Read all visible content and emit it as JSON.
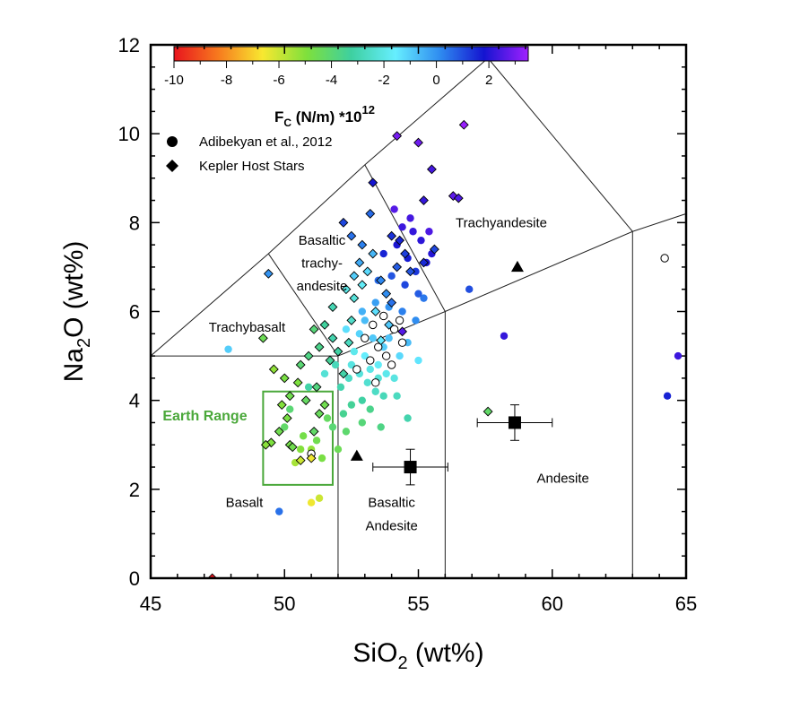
{
  "chart_data": {
    "type": "scatter",
    "xlabel_main": "SiO",
    "xlabel_sub": "2",
    "xlabel_tail": " (wt%)",
    "ylabel_main": "Na",
    "ylabel_sub": "2",
    "ylabel_tail": "O (wt%)",
    "xlim": [
      45,
      65
    ],
    "ylim": [
      0,
      12
    ],
    "xticks": [
      45,
      50,
      55,
      60,
      65
    ],
    "yticks": [
      0,
      2,
      4,
      6,
      8,
      10,
      12
    ],
    "colorbar": {
      "title_main": "F",
      "title_sub": "C",
      "title_tail": " (N/m) *10",
      "title_sup": "12",
      "range": [
        -10,
        3.5
      ],
      "ticks": [
        -10,
        -8,
        -6,
        -4,
        -2,
        0,
        2
      ],
      "tick_labels": [
        "-10",
        "-8",
        "-6",
        "-4",
        "-2",
        "0",
        "2"
      ],
      "colors": [
        "#e8141e",
        "#f77a1e",
        "#f8e830",
        "#7ee03c",
        "#3ed0a0",
        "#66eeff",
        "#2f8cf0",
        "#1414d0",
        "#a020ff"
      ]
    },
    "legend": [
      {
        "marker": "circle",
        "label": "Adibekyan et al., 2012"
      },
      {
        "marker": "diamond",
        "label": "Kepler Host Stars"
      }
    ],
    "region_labels": [
      {
        "text": "Trachyandesite",
        "x": 58.1,
        "y": 7.9
      },
      {
        "text": "Basaltic",
        "x": 51.4,
        "y": 7.5
      },
      {
        "text": "trachy-",
        "x": 51.4,
        "y": 6.99
      },
      {
        "text": "andesite",
        "x": 51.4,
        "y": 6.47
      },
      {
        "text": "Trachybasalt",
        "x": 48.6,
        "y": 5.55
      },
      {
        "text": "Basalt",
        "x": 48.5,
        "y": 1.6
      },
      {
        "text": "Basaltic",
        "x": 54.0,
        "y": 1.6
      },
      {
        "text": "Andesite",
        "x": 54.0,
        "y": 1.08
      },
      {
        "text": "Andesite",
        "x": 60.4,
        "y": 2.15
      }
    ],
    "tas_boundaries": [
      [
        [
          45,
          5
        ],
        [
          52,
          5
        ],
        [
          52,
          0
        ]
      ],
      [
        [
          52,
          5
        ],
        [
          56,
          6
        ],
        [
          56,
          0
        ]
      ],
      [
        [
          56,
          6
        ],
        [
          63,
          7.8
        ],
        [
          63,
          0
        ]
      ],
      [
        [
          63,
          7.8
        ],
        [
          65,
          8.2
        ]
      ],
      [
        [
          45,
          5
        ],
        [
          49.4,
          7.3
        ],
        [
          53,
          9.3
        ],
        [
          57.6,
          11.7
        ]
      ],
      [
        [
          49.4,
          7.3
        ],
        [
          52,
          5
        ]
      ],
      [
        [
          53,
          9.3
        ],
        [
          56,
          6
        ]
      ],
      [
        [
          57.6,
          11.7
        ],
        [
          63,
          7.8
        ]
      ]
    ],
    "earth_range": {
      "label": "Earth Range",
      "x": [
        49.2,
        51.8
      ],
      "y": [
        2.1,
        4.2
      ],
      "color": "#4aa83a"
    },
    "adibekyan_points": [
      {
        "x": 47.9,
        "y": 5.15,
        "fc": -1.0
      },
      {
        "x": 49.8,
        "y": 1.5,
        "fc": 0.5
      },
      {
        "x": 50.6,
        "y": 2.9,
        "fc": -5.0
      },
      {
        "x": 50.4,
        "y": 2.6,
        "fc": -5.5
      },
      {
        "x": 51.0,
        "y": 2.9,
        "fc": -5.2
      },
      {
        "x": 51.3,
        "y": 1.8,
        "fc": -6.0
      },
      {
        "x": 51.0,
        "y": 1.7,
        "fc": -6.5
      },
      {
        "x": 51.4,
        "y": 2.7,
        "fc": -4.8
      },
      {
        "x": 51.2,
        "y": 3.1,
        "fc": -4.6
      },
      {
        "x": 50.0,
        "y": 3.4,
        "fc": -4.2
      },
      {
        "x": 50.2,
        "y": 3.8,
        "fc": -4.0
      },
      {
        "x": 52.0,
        "y": 2.9,
        "fc": -4.5
      },
      {
        "x": 52.3,
        "y": 3.3,
        "fc": -4.1
      },
      {
        "x": 51.6,
        "y": 3.6,
        "fc": -4.3
      },
      {
        "x": 52.5,
        "y": 3.9,
        "fc": -3.4
      },
      {
        "x": 52.9,
        "y": 4.0,
        "fc": -3.2
      },
      {
        "x": 53.2,
        "y": 3.8,
        "fc": -3.6
      },
      {
        "x": 54.6,
        "y": 3.6,
        "fc": -3.0
      },
      {
        "x": 52.1,
        "y": 4.3,
        "fc": -3.0
      },
      {
        "x": 51.9,
        "y": 4.8,
        "fc": -2.8
      },
      {
        "x": 52.4,
        "y": 4.5,
        "fc": -2.6
      },
      {
        "x": 52.8,
        "y": 4.6,
        "fc": -2.2
      },
      {
        "x": 53.1,
        "y": 4.4,
        "fc": -2.4
      },
      {
        "x": 53.4,
        "y": 4.2,
        "fc": -2.6
      },
      {
        "x": 53.7,
        "y": 4.1,
        "fc": -2.8
      },
      {
        "x": 52.6,
        "y": 5.1,
        "fc": -1.9
      },
      {
        "x": 53.0,
        "y": 5.0,
        "fc": -1.6
      },
      {
        "x": 53.5,
        "y": 4.8,
        "fc": -1.7
      },
      {
        "x": 53.8,
        "y": 4.6,
        "fc": -1.9
      },
      {
        "x": 54.1,
        "y": 4.5,
        "fc": -2.1
      },
      {
        "x": 52.3,
        "y": 5.6,
        "fc": -1.3
      },
      {
        "x": 52.8,
        "y": 5.5,
        "fc": -1.1
      },
      {
        "x": 53.3,
        "y": 5.4,
        "fc": -0.9
      },
      {
        "x": 53.7,
        "y": 5.2,
        "fc": -1.0
      },
      {
        "x": 54.3,
        "y": 5.0,
        "fc": -1.2
      },
      {
        "x": 54.6,
        "y": 5.3,
        "fc": -0.7
      },
      {
        "x": 52.9,
        "y": 6.0,
        "fc": -0.5
      },
      {
        "x": 53.4,
        "y": 6.2,
        "fc": -0.2
      },
      {
        "x": 53.9,
        "y": 6.1,
        "fc": 0.0
      },
      {
        "x": 54.4,
        "y": 6.0,
        "fc": 0.3
      },
      {
        "x": 54.9,
        "y": 5.8,
        "fc": 0.1
      },
      {
        "x": 53.5,
        "y": 6.7,
        "fc": 0.6
      },
      {
        "x": 54.0,
        "y": 6.8,
        "fc": 0.9
      },
      {
        "x": 54.5,
        "y": 6.6,
        "fc": 1.1
      },
      {
        "x": 54.9,
        "y": 6.9,
        "fc": 1.3
      },
      {
        "x": 53.7,
        "y": 7.3,
        "fc": 1.6
      },
      {
        "x": 54.2,
        "y": 7.5,
        "fc": 1.9
      },
      {
        "x": 54.6,
        "y": 7.2,
        "fc": 1.7
      },
      {
        "x": 55.1,
        "y": 7.6,
        "fc": 2.1
      },
      {
        "x": 55.3,
        "y": 7.1,
        "fc": 1.9
      },
      {
        "x": 54.4,
        "y": 7.9,
        "fc": 2.3
      },
      {
        "x": 54.7,
        "y": 8.1,
        "fc": 2.4
      },
      {
        "x": 55.5,
        "y": 7.3,
        "fc": 2.0
      },
      {
        "x": 56.9,
        "y": 6.5,
        "fc": 1.0
      },
      {
        "x": 58.2,
        "y": 5.45,
        "fc": 2.2
      },
      {
        "x": 64.3,
        "y": 4.1,
        "fc": 1.6
      },
      {
        "x": 64.7,
        "y": 5.0,
        "fc": 2.3
      },
      {
        "x": 51.5,
        "y": 4.6,
        "fc": -2.3
      },
      {
        "x": 50.9,
        "y": 4.3,
        "fc": -3.1
      },
      {
        "x": 52.9,
        "y": 3.5,
        "fc": -3.9
      },
      {
        "x": 53.6,
        "y": 3.4,
        "fc": -3.7
      },
      {
        "x": 54.2,
        "y": 4.1,
        "fc": -2.7
      },
      {
        "x": 55.0,
        "y": 4.9,
        "fc": -1.4
      },
      {
        "x": 55.2,
        "y": 6.3,
        "fc": 0.4
      },
      {
        "x": 52.5,
        "y": 4.8,
        "fc": -2.1
      },
      {
        "x": 53.2,
        "y": 4.7,
        "fc": -2.0
      },
      {
        "x": 53.9,
        "y": 5.4,
        "fc": -0.8
      },
      {
        "x": 54.8,
        "y": 7.8,
        "fc": 2.2
      },
      {
        "x": 55.4,
        "y": 7.8,
        "fc": 2.5
      },
      {
        "x": 54.1,
        "y": 8.3,
        "fc": 2.6
      },
      {
        "x": 55.0,
        "y": 6.4,
        "fc": 0.8
      },
      {
        "x": 53.0,
        "y": 5.8,
        "fc": -0.7
      },
      {
        "x": 50.7,
        "y": 3.2,
        "fc": -4.7
      },
      {
        "x": 51.8,
        "y": 3.4,
        "fc": -4.0
      },
      {
        "x": 52.2,
        "y": 3.7,
        "fc": -3.5
      },
      {
        "x": 53.5,
        "y": 4.5,
        "fc": -2.3
      }
    ],
    "adibekyan_open": [
      {
        "x": 51.0,
        "y": 2.8
      },
      {
        "x": 53.2,
        "y": 4.9
      },
      {
        "x": 53.5,
        "y": 5.2
      },
      {
        "x": 53.8,
        "y": 5.0
      },
      {
        "x": 54.1,
        "y": 5.6
      },
      {
        "x": 53.0,
        "y": 5.4
      },
      {
        "x": 54.4,
        "y": 5.3
      },
      {
        "x": 53.3,
        "y": 5.7
      },
      {
        "x": 53.7,
        "y": 5.9
      },
      {
        "x": 52.7,
        "y": 4.7
      },
      {
        "x": 54.0,
        "y": 4.8
      },
      {
        "x": 54.3,
        "y": 5.8
      },
      {
        "x": 64.2,
        "y": 7.2
      },
      {
        "x": 53.4,
        "y": 4.4
      }
    ],
    "kepler_points": [
      {
        "x": 47.3,
        "y": 0.0,
        "fc": -10.0
      },
      {
        "x": 49.2,
        "y": 5.4,
        "fc": -4.5
      },
      {
        "x": 49.4,
        "y": 6.85,
        "fc": 0.0
      },
      {
        "x": 50.0,
        "y": 4.5,
        "fc": -4.8
      },
      {
        "x": 49.6,
        "y": 4.7,
        "fc": -5.2
      },
      {
        "x": 50.2,
        "y": 4.1,
        "fc": -4.6
      },
      {
        "x": 50.5,
        "y": 4.4,
        "fc": -4.9
      },
      {
        "x": 49.9,
        "y": 3.9,
        "fc": -5.0
      },
      {
        "x": 50.1,
        "y": 3.6,
        "fc": -4.8
      },
      {
        "x": 49.8,
        "y": 3.3,
        "fc": -4.6
      },
      {
        "x": 49.5,
        "y": 3.05,
        "fc": -4.9
      },
      {
        "x": 49.3,
        "y": 3.0,
        "fc": -5.1
      },
      {
        "x": 50.2,
        "y": 3.0,
        "fc": -4.7
      },
      {
        "x": 50.3,
        "y": 2.95,
        "fc": -4.6
      },
      {
        "x": 50.6,
        "y": 2.65,
        "fc": -6.0
      },
      {
        "x": 51.1,
        "y": 3.3,
        "fc": -4.2
      },
      {
        "x": 51.3,
        "y": 3.7,
        "fc": -4.4
      },
      {
        "x": 51.5,
        "y": 3.9,
        "fc": -4.6
      },
      {
        "x": 50.8,
        "y": 4.0,
        "fc": -4.3
      },
      {
        "x": 51.2,
        "y": 4.3,
        "fc": -3.8
      },
      {
        "x": 50.6,
        "y": 4.8,
        "fc": -4.0
      },
      {
        "x": 50.9,
        "y": 5.0,
        "fc": -3.7
      },
      {
        "x": 51.3,
        "y": 5.2,
        "fc": -3.6
      },
      {
        "x": 51.1,
        "y": 5.6,
        "fc": -3.9
      },
      {
        "x": 51.5,
        "y": 5.7,
        "fc": -3.3
      },
      {
        "x": 51.8,
        "y": 5.4,
        "fc": -3.0
      },
      {
        "x": 52.0,
        "y": 5.1,
        "fc": -3.2
      },
      {
        "x": 51.7,
        "y": 4.9,
        "fc": -3.4
      },
      {
        "x": 52.2,
        "y": 4.6,
        "fc": -3.1
      },
      {
        "x": 52.4,
        "y": 5.3,
        "fc": -2.7
      },
      {
        "x": 52.5,
        "y": 5.8,
        "fc": -2.5
      },
      {
        "x": 52.6,
        "y": 6.3,
        "fc": -2.2
      },
      {
        "x": 52.9,
        "y": 6.6,
        "fc": -1.7
      },
      {
        "x": 53.1,
        "y": 6.9,
        "fc": -1.2
      },
      {
        "x": 52.8,
        "y": 7.1,
        "fc": -0.4
      },
      {
        "x": 52.9,
        "y": 7.5,
        "fc": 0.3
      },
      {
        "x": 52.6,
        "y": 6.8,
        "fc": -1.0
      },
      {
        "x": 53.3,
        "y": 7.3,
        "fc": -0.6
      },
      {
        "x": 53.6,
        "y": 6.7,
        "fc": 0.2
      },
      {
        "x": 53.8,
        "y": 6.4,
        "fc": 0.1
      },
      {
        "x": 54.0,
        "y": 6.2,
        "fc": 0.5
      },
      {
        "x": 53.4,
        "y": 6.0,
        "fc": -1.3
      },
      {
        "x": 53.9,
        "y": 5.7,
        "fc": -0.9
      },
      {
        "x": 54.4,
        "y": 5.55,
        "fc": 2.6
      },
      {
        "x": 54.2,
        "y": 7.0,
        "fc": 0.8
      },
      {
        "x": 54.5,
        "y": 7.3,
        "fc": 1.2
      },
      {
        "x": 54.7,
        "y": 6.9,
        "fc": 0.9
      },
      {
        "x": 55.2,
        "y": 7.1,
        "fc": 1.5
      },
      {
        "x": 55.6,
        "y": 7.4,
        "fc": 1.1
      },
      {
        "x": 54.3,
        "y": 7.6,
        "fc": 1.6
      },
      {
        "x": 53.2,
        "y": 8.2,
        "fc": 0.6
      },
      {
        "x": 52.2,
        "y": 8.0,
        "fc": 1.1
      },
      {
        "x": 53.3,
        "y": 8.9,
        "fc": 1.8
      },
      {
        "x": 55.2,
        "y": 8.5,
        "fc": 2.2
      },
      {
        "x": 55.5,
        "y": 9.2,
        "fc": 2.4
      },
      {
        "x": 54.2,
        "y": 9.95,
        "fc": 3.0
      },
      {
        "x": 55.0,
        "y": 9.8,
        "fc": 2.9
      },
      {
        "x": 56.7,
        "y": 10.2,
        "fc": 3.4
      },
      {
        "x": 56.3,
        "y": 8.6,
        "fc": 2.7
      },
      {
        "x": 56.5,
        "y": 8.55,
        "fc": 2.5
      },
      {
        "x": 57.6,
        "y": 3.75,
        "fc": -4.2
      },
      {
        "x": 51.0,
        "y": 2.7,
        "fc": -6.5
      },
      {
        "x": 51.8,
        "y": 6.1,
        "fc": -2.9
      },
      {
        "x": 52.3,
        "y": 6.5,
        "fc": -2.0
      },
      {
        "x": 53.6,
        "y": 5.35,
        "fc": -1.5
      },
      {
        "x": 54.0,
        "y": 7.7,
        "fc": 1.4
      },
      {
        "x": 52.5,
        "y": 7.7,
        "fc": 0.5
      }
    ],
    "reference_triangles": [
      {
        "x": 52.7,
        "y": 2.75
      },
      {
        "x": 58.7,
        "y": 7.0
      }
    ],
    "reference_squares": [
      {
        "x": 54.7,
        "y": 2.5,
        "xerr": 1.4,
        "yerr": 0.4
      },
      {
        "x": 58.6,
        "y": 3.5,
        "xerr": 1.4,
        "yerr": 0.4
      }
    ]
  }
}
